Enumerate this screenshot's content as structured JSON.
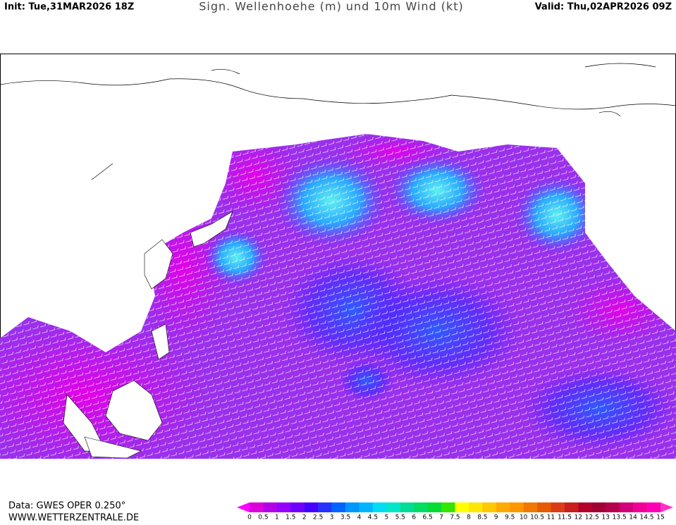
{
  "header": {
    "init": "Init: Tue,31MAR2026 18Z",
    "title": "Sign. Wellenhoehe (m) und 10m Wind (kt)",
    "valid": "Valid: Thu,02APR2026 09Z"
  },
  "footer": {
    "data": "Data: GWES OPER 0.250°",
    "site": "WWW.WETTERZENTRALE.DE"
  },
  "colorbar": {
    "labels": [
      "0",
      "0.5",
      "1",
      "1.5",
      "2",
      "2.5",
      "3",
      "3.5",
      "4",
      "4.5",
      "5",
      "5.5",
      "6",
      "6.5",
      "7",
      "7.5",
      "8",
      "8.5",
      "9",
      "9.5",
      "10",
      "10.5",
      "11",
      "11.5",
      "12",
      "12.5",
      "13",
      "13.5",
      "14",
      "14.5",
      "15"
    ],
    "colors": [
      "#dc00dc",
      "#b400e6",
      "#9600ff",
      "#6e00ff",
      "#4600ff",
      "#2832ff",
      "#0064ff",
      "#0096ff",
      "#00b4ff",
      "#00dcf0",
      "#00e6c8",
      "#00dc96",
      "#00dc64",
      "#00dc32",
      "#32e600",
      "#ffff00",
      "#ffe600",
      "#ffc800",
      "#ffaa00",
      "#ff9600",
      "#f07800",
      "#e65a00",
      "#dc3c14",
      "#c81e1e",
      "#b40028",
      "#a00032",
      "#b4004b",
      "#d20078",
      "#f00096",
      "#ff00b4"
    ],
    "under_color": "#ff00ff",
    "over_color": "#ff32c8"
  }
}
